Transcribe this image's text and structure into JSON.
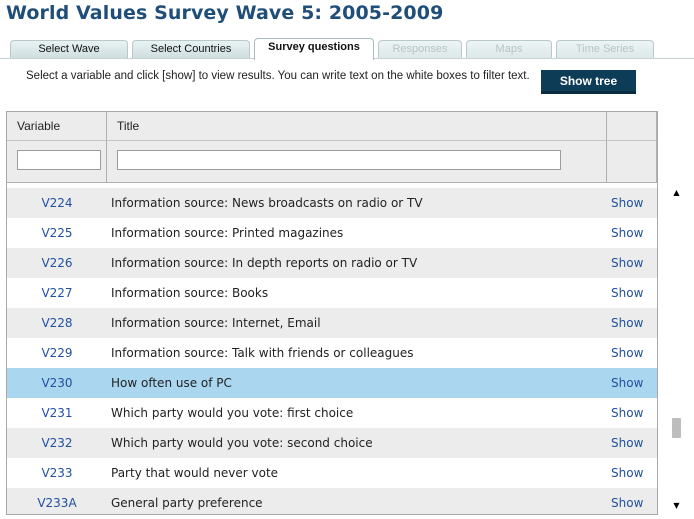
{
  "header": {
    "title": "World Values Survey Wave 5: 2005-2009"
  },
  "tabs": [
    {
      "label": "Select Wave",
      "state": "normal"
    },
    {
      "label": "Select Countries",
      "state": "normal"
    },
    {
      "label": "Survey questions",
      "state": "active"
    },
    {
      "label": "Responses",
      "state": "disabled"
    },
    {
      "label": "Maps",
      "state": "disabled"
    },
    {
      "label": "Time Series",
      "state": "disabled"
    }
  ],
  "instructions": "Select a variable and click [show] to view results. You can write text on the white boxes to filter text.",
  "show_tree_label": "Show tree",
  "table": {
    "columns": {
      "variable": "Variable",
      "title": "Title"
    },
    "filters": {
      "variable_value": "",
      "title_value": ""
    },
    "show_label": "Show",
    "rows": [
      {
        "variable": "V224",
        "title": "Information source: News broadcasts on radio or TV"
      },
      {
        "variable": "V225",
        "title": "Information source: Printed magazines"
      },
      {
        "variable": "V226",
        "title": "Information source: In depth reports on radio or TV"
      },
      {
        "variable": "V227",
        "title": "Information source: Books"
      },
      {
        "variable": "V228",
        "title": "Information source: Internet, Email"
      },
      {
        "variable": "V229",
        "title": "Information source: Talk with friends or colleagues"
      },
      {
        "variable": "V230",
        "title": "How often use of PC",
        "selected": true
      },
      {
        "variable": "V231",
        "title": "Which party would you vote: first choice"
      },
      {
        "variable": "V232",
        "title": "Which party would you vote: second choice"
      },
      {
        "variable": "V233",
        "title": "Party that would never vote"
      },
      {
        "variable": "V233A",
        "title": "General party preference"
      }
    ]
  },
  "scrollbar": {
    "position_fraction": 0.78
  },
  "colors": {
    "title": "#1f4e79",
    "button": "#0d3c57",
    "selected_row": "#abd6f0",
    "link": "#2050a0"
  }
}
